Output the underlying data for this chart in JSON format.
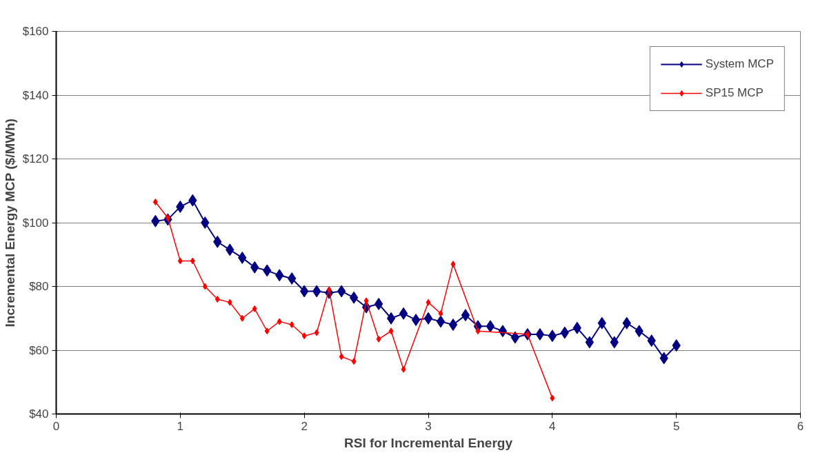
{
  "chart_data": {
    "type": "line",
    "xlabel": "RSI for Incremental Energy",
    "ylabel": "Incremental Energy MCP ($/MWh)",
    "xlim": [
      0,
      6
    ],
    "xticks": [
      0,
      1,
      2,
      3,
      4,
      5,
      6
    ],
    "ylim": [
      40,
      160
    ],
    "yticks": [
      {
        "value": 40,
        "label": "$40"
      },
      {
        "value": 60,
        "label": "$60"
      },
      {
        "value": 80,
        "label": "$80"
      },
      {
        "value": 100,
        "label": "$100"
      },
      {
        "value": 120,
        "label": "$120"
      },
      {
        "value": 140,
        "label": "$140"
      },
      {
        "value": 160,
        "label": "$160"
      }
    ],
    "grid": "y",
    "legend": "top right",
    "marker": "diamond",
    "line_style": "solid",
    "series": [
      {
        "name": "System MCP",
        "color": "#000080",
        "x": [
          0.8,
          0.9,
          1.0,
          1.1,
          1.2,
          1.3,
          1.4,
          1.5,
          1.6,
          1.7,
          1.8,
          1.9,
          2.0,
          2.1,
          2.2,
          2.3,
          2.4,
          2.5,
          2.6,
          2.7,
          2.8,
          2.9,
          3.0,
          3.1,
          3.2,
          3.3,
          3.4,
          3.5,
          3.6,
          3.7,
          3.8,
          3.9,
          4.0,
          4.1,
          4.2,
          4.3,
          4.4,
          4.5,
          4.6,
          4.7,
          4.8,
          4.9,
          5.0
        ],
        "values": [
          100.5,
          101,
          105,
          107,
          100,
          94,
          91.5,
          89,
          86,
          85,
          83.5,
          82.5,
          78.5,
          78.5,
          78,
          78.5,
          76.5,
          73.5,
          74.5,
          70,
          71.5,
          69.5,
          70,
          69,
          68,
          71,
          67.5,
          67.5,
          66,
          64,
          65,
          65,
          64.5,
          65.5,
          67,
          62.5,
          68.5,
          62.5,
          68.5,
          66,
          63,
          57.5,
          61.5
        ]
      },
      {
        "name": "SP15 MCP",
        "color": "#ff0000",
        "x": [
          0.8,
          0.9,
          1.0,
          1.1,
          1.2,
          1.3,
          1.4,
          1.5,
          1.6,
          1.7,
          1.8,
          1.9,
          2.0,
          2.1,
          2.2,
          2.3,
          2.4,
          2.5,
          2.6,
          2.7,
          2.8,
          3.0,
          3.1,
          3.2,
          3.4,
          3.8,
          4.0
        ],
        "values": [
          106.5,
          101.5,
          88,
          88,
          80,
          76,
          75,
          70,
          73,
          66,
          69,
          68,
          64.5,
          65.5,
          79,
          58,
          56.5,
          75.5,
          63.5,
          66,
          54,
          75,
          71.5,
          87,
          66,
          65,
          45
        ]
      }
    ]
  }
}
